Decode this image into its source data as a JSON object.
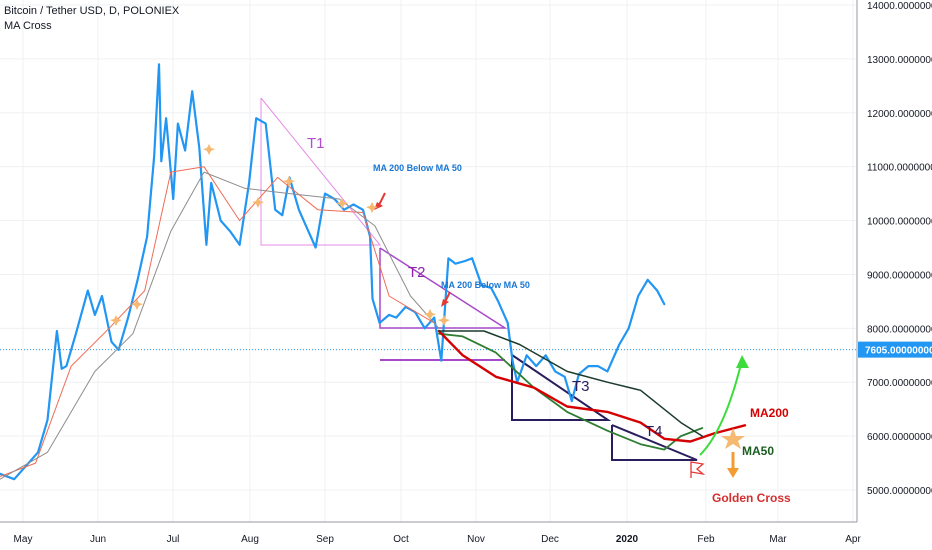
{
  "header": {
    "symbol_line": "Bitcoin / Tether USD, D, POLONIEX",
    "indicator": "MA Cross"
  },
  "chart_data": {
    "type": "line",
    "title": "Bitcoin / Tether USD, D, POLONIEX",
    "indicator": "MA Cross",
    "xlabel": "",
    "ylabel": "",
    "ylim": [
      4600,
      14050
    ],
    "grid": true,
    "x_tick_labels": [
      "May",
      "Jun",
      "Jul",
      "Aug",
      "Sep",
      "Oct",
      "Nov",
      "Dec",
      "2020",
      "Feb",
      "Mar",
      "Apr"
    ],
    "y_tick_labels": [
      "5000.00000000",
      "6000.00000000",
      "7000.00000000",
      "8000.00000000",
      "9000.00000000",
      "10000.00000000",
      "11000.00000000",
      "12000.00000000",
      "13000.00000000",
      "14000.00000000"
    ],
    "y_tick_values": [
      5000,
      6000,
      7000,
      8000,
      9000,
      10000,
      11000,
      12000,
      13000,
      14000
    ],
    "current_price": 7605,
    "current_price_label": "7605.00000000",
    "series": [
      {
        "name": "",
        "color": "#2196f3",
        "points": [
          [
            "2019-04-20",
            5300
          ],
          [
            "2019-04-26",
            5200
          ],
          [
            "2019-05-01",
            5450
          ],
          [
            "2019-05-06",
            5700
          ],
          [
            "2019-05-10",
            6300
          ],
          [
            "2019-05-14",
            7950
          ],
          [
            "2019-05-16",
            7250
          ],
          [
            "2019-05-18",
            7300
          ],
          [
            "2019-05-22",
            7900
          ],
          [
            "2019-05-27",
            8700
          ],
          [
            "2019-05-30",
            8250
          ],
          [
            "2019-06-02",
            8600
          ],
          [
            "2019-06-06",
            7750
          ],
          [
            "2019-06-09",
            7600
          ],
          [
            "2019-06-13",
            8200
          ],
          [
            "2019-06-17",
            8900
          ],
          [
            "2019-06-21",
            9700
          ],
          [
            "2019-06-24",
            11200
          ],
          [
            "2019-06-26",
            12900
          ],
          [
            "2019-06-27",
            11100
          ],
          [
            "2019-06-29",
            11900
          ],
          [
            "2019-07-02",
            10400
          ],
          [
            "2019-07-04",
            11800
          ],
          [
            "2019-07-07",
            11300
          ],
          [
            "2019-07-10",
            12400
          ],
          [
            "2019-07-13",
            11350
          ],
          [
            "2019-07-16",
            9550
          ],
          [
            "2019-07-18",
            10700
          ],
          [
            "2019-07-22",
            10000
          ],
          [
            "2019-07-26",
            9800
          ],
          [
            "2019-07-30",
            9550
          ],
          [
            "2019-08-03",
            10700
          ],
          [
            "2019-08-06",
            11900
          ],
          [
            "2019-08-10",
            11800
          ],
          [
            "2019-08-14",
            10200
          ],
          [
            "2019-08-17",
            10100
          ],
          [
            "2019-08-20",
            10800
          ],
          [
            "2019-08-24",
            10200
          ],
          [
            "2019-08-28",
            9800
          ],
          [
            "2019-08-31",
            9500
          ],
          [
            "2019-09-04",
            10500
          ],
          [
            "2019-09-08",
            10400
          ],
          [
            "2019-09-12",
            10200
          ],
          [
            "2019-09-16",
            10300
          ],
          [
            "2019-09-20",
            10200
          ],
          [
            "2019-09-23",
            9700
          ],
          [
            "2019-09-24",
            8550
          ],
          [
            "2019-09-27",
            8100
          ],
          [
            "2019-10-01",
            8250
          ],
          [
            "2019-10-04",
            8200
          ],
          [
            "2019-10-08",
            8400
          ],
          [
            "2019-10-12",
            8300
          ],
          [
            "2019-10-16",
            8000
          ],
          [
            "2019-10-20",
            8200
          ],
          [
            "2019-10-23",
            7400
          ],
          [
            "2019-10-26",
            9300
          ],
          [
            "2019-10-29",
            9200
          ],
          [
            "2019-11-02",
            9250
          ],
          [
            "2019-11-05",
            9300
          ],
          [
            "2019-11-09",
            8800
          ],
          [
            "2019-11-13",
            8750
          ],
          [
            "2019-11-16",
            8500
          ],
          [
            "2019-11-20",
            8100
          ],
          [
            "2019-11-22",
            7400
          ],
          [
            "2019-11-24",
            7000
          ],
          [
            "2019-11-28",
            7500
          ],
          [
            "2019-12-02",
            7300
          ],
          [
            "2019-12-06",
            7500
          ],
          [
            "2019-12-10",
            7200
          ],
          [
            "2019-12-14",
            7100
          ],
          [
            "2019-12-17",
            6650
          ],
          [
            "2019-12-20",
            7150
          ],
          [
            "2019-12-24",
            7300
          ],
          [
            "2019-12-28",
            7300
          ],
          [
            "2020-01-01",
            7200
          ],
          [
            "2020-01-06",
            7700
          ],
          [
            "2020-01-10",
            8000
          ],
          [
            "2020-01-14",
            8600
          ],
          [
            "2020-01-18",
            8900
          ],
          [
            "2020-01-22",
            8700
          ],
          [
            "2020-01-25",
            8450
          ]
        ]
      },
      {
        "name": "",
        "color": "#ef6c57",
        "points": [
          [
            "2019-04-20",
            5250
          ],
          [
            "2019-05-05",
            5500
          ],
          [
            "2019-05-20",
            7300
          ],
          [
            "2019-06-05",
            8000
          ],
          [
            "2019-06-20",
            8700
          ],
          [
            "2019-07-01",
            10900
          ],
          [
            "2019-07-15",
            11000
          ],
          [
            "2019-07-30",
            10000
          ],
          [
            "2019-08-15",
            10800
          ],
          [
            "2019-09-01",
            10200
          ],
          [
            "2019-09-20",
            10150
          ],
          [
            "2019-10-01",
            8600
          ],
          [
            "2019-10-20",
            8100
          ]
        ]
      },
      {
        "name": "",
        "color": "#8d8d8d",
        "points": [
          [
            "2019-04-20",
            5200
          ],
          [
            "2019-05-10",
            5700
          ],
          [
            "2019-05-30",
            7200
          ],
          [
            "2019-06-15",
            7900
          ],
          [
            "2019-07-01",
            9800
          ],
          [
            "2019-07-15",
            10900
          ],
          [
            "2019-08-01",
            10600
          ],
          [
            "2019-08-20",
            10500
          ],
          [
            "2019-09-10",
            10400
          ],
          [
            "2019-09-25",
            9900
          ],
          [
            "2019-10-10",
            8600
          ],
          [
            "2019-10-22",
            8000
          ]
        ]
      },
      {
        "name": "MA50",
        "color": "#2e7d32",
        "points": [
          [
            "2019-10-22",
            7900
          ],
          [
            "2019-11-01",
            7850
          ],
          [
            "2019-11-15",
            7550
          ],
          [
            "2019-12-01",
            6900
          ],
          [
            "2019-12-15",
            6450
          ],
          [
            "2020-01-01",
            6100
          ],
          [
            "2020-01-15",
            5850
          ],
          [
            "2020-01-25",
            5750
          ],
          [
            "2020-02-01",
            6000
          ],
          [
            "2020-02-10",
            6150
          ]
        ]
      },
      {
        "name": "MA200",
        "color": "#d50000",
        "points": [
          [
            "2019-10-22",
            7950
          ],
          [
            "2019-11-01",
            7500
          ],
          [
            "2019-11-15",
            7100
          ],
          [
            "2019-12-01",
            6900
          ],
          [
            "2019-12-15",
            6550
          ],
          [
            "2020-01-01",
            6450
          ],
          [
            "2020-01-15",
            6250
          ],
          [
            "2020-01-25",
            5950
          ],
          [
            "2020-02-05",
            5900
          ],
          [
            "2020-02-15",
            6050
          ],
          [
            "2020-02-28",
            6200
          ]
        ]
      },
      {
        "name": "",
        "color": "#1b3b2c",
        "points": [
          [
            "2019-10-22",
            7950
          ],
          [
            "2019-11-10",
            7950
          ],
          [
            "2019-11-25",
            7700
          ],
          [
            "2019-12-15",
            7200
          ],
          [
            "2020-01-01",
            7000
          ],
          [
            "2020-01-15",
            6850
          ],
          [
            "2020-02-01",
            6250
          ],
          [
            "2020-02-10",
            6000
          ]
        ]
      }
    ],
    "annotations": [
      {
        "text": "T1",
        "color": "#b24dd1"
      },
      {
        "text": "T2",
        "color": "#8e24aa"
      },
      {
        "text": "T3",
        "color": "#2a1d5e"
      },
      {
        "text": "T4",
        "color": "#2a1d5e"
      },
      {
        "text": "MA 200 Below MA 50",
        "color": "#1976d2"
      },
      {
        "text": "MA 200 Below MA 50",
        "color": "#1976d2"
      },
      {
        "text": "MA200",
        "color": "#d50000"
      },
      {
        "text": "MA50",
        "color": "#1b5e20"
      },
      {
        "text": "Golden Cross",
        "color": "#d32f2f"
      }
    ]
  }
}
